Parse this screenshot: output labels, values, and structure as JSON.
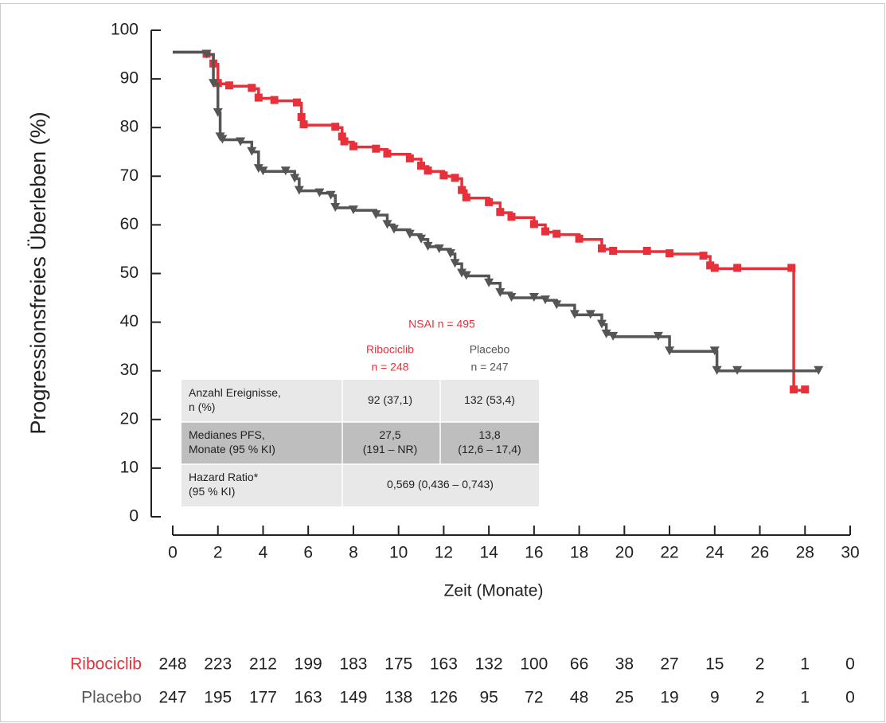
{
  "chart_data": {
    "type": "line",
    "step": true,
    "y_label": "Progressionsfreies Überleben (%)",
    "x_label": "Zeit (Monate)",
    "xlim": [
      0,
      30
    ],
    "xticks": [
      0,
      2,
      4,
      6,
      8,
      10,
      12,
      14,
      16,
      18,
      20,
      22,
      24,
      26,
      28,
      30
    ],
    "ylim": [
      0,
      100
    ],
    "yticks": [
      0,
      10,
      20,
      30,
      40,
      50,
      60,
      70,
      80,
      90,
      100
    ],
    "series": [
      {
        "name": "Ribociclib",
        "color": "#e8303a",
        "marker": "square",
        "x": [
          0,
          1.5,
          1.8,
          2,
          2.5,
          3.5,
          3.8,
          4.5,
          5.5,
          5.7,
          5.8,
          7.2,
          7.5,
          7.6,
          8,
          9,
          9.5,
          10.5,
          11,
          11.3,
          12,
          12.5,
          12.8,
          13,
          14,
          14.5,
          15,
          16,
          16.5,
          17,
          18,
          19,
          19.5,
          21,
          22,
          23.5,
          23.8,
          24,
          25,
          27.4,
          27.5,
          28
        ],
        "values": [
          95.5,
          95,
          93,
          89,
          88.5,
          88,
          86,
          85.5,
          85,
          82,
          80.5,
          80,
          78,
          77,
          76,
          75.5,
          74.5,
          73.5,
          72,
          71,
          70,
          69.5,
          67,
          65.5,
          64.5,
          62.5,
          61.5,
          60,
          58.5,
          58,
          57,
          55,
          54.5,
          54.5,
          54,
          53.5,
          51.5,
          51,
          51,
          51,
          26,
          26
        ]
      },
      {
        "name": "Placebo",
        "color": "#555555",
        "marker": "triangle",
        "x": [
          0,
          1.5,
          1.8,
          2,
          2.1,
          2.2,
          3,
          3.5,
          3.8,
          4,
          5,
          5.4,
          5.6,
          6.5,
          7,
          7.2,
          8,
          9,
          9.5,
          9.8,
          10.5,
          11,
          11.3,
          11.8,
          12.3,
          12.5,
          12.8,
          13,
          14,
          14.5,
          15,
          16,
          16.5,
          17,
          17.8,
          18.5,
          19,
          19.2,
          19.5,
          21.5,
          22,
          24,
          24.1,
          25,
          28.6
        ],
        "values": [
          95.5,
          95,
          89,
          83,
          78,
          77.5,
          77,
          75,
          71.5,
          71,
          71,
          69.5,
          67,
          66.5,
          66,
          63.5,
          63,
          62,
          60,
          59,
          58,
          57,
          55.5,
          55,
          54,
          52,
          50,
          49.5,
          48,
          46,
          45,
          45,
          44.5,
          43.5,
          41.5,
          41.5,
          39.5,
          37.5,
          37,
          37,
          34,
          34,
          30,
          30,
          30
        ]
      }
    ]
  },
  "annotation_table": {
    "title": "NSAI n = 495",
    "columns": [
      [
        "Ribociclib",
        "n = 248"
      ],
      [
        "Placebo",
        "n = 247"
      ]
    ],
    "rows": [
      [
        [
          "Anzahl Ereignisse,",
          "n (%)"
        ],
        [
          "92 (37,1)"
        ],
        [
          "132 (53,4)"
        ]
      ],
      [
        [
          "Medianes PFS,",
          "Monate (95 % KI)"
        ],
        [
          "27,5",
          "(191 – NR)"
        ],
        [
          "13,8",
          "(12,6 – 17,4)"
        ]
      ],
      [
        [
          "Hazard Ratio*",
          "(95 % KI)"
        ],
        [
          "0,569 (0,436 – 0,743)"
        ]
      ]
    ]
  },
  "at_risk": [
    {
      "name": "Ribociclib",
      "color": "#e8303a",
      "values": [
        248,
        223,
        212,
        199,
        183,
        175,
        163,
        132,
        100,
        66,
        38,
        27,
        15,
        2,
        1,
        0
      ]
    },
    {
      "name": "Placebo",
      "color": "#555555",
      "values": [
        247,
        195,
        177,
        163,
        149,
        138,
        126,
        95,
        72,
        48,
        25,
        19,
        9,
        2,
        1,
        0
      ]
    }
  ]
}
